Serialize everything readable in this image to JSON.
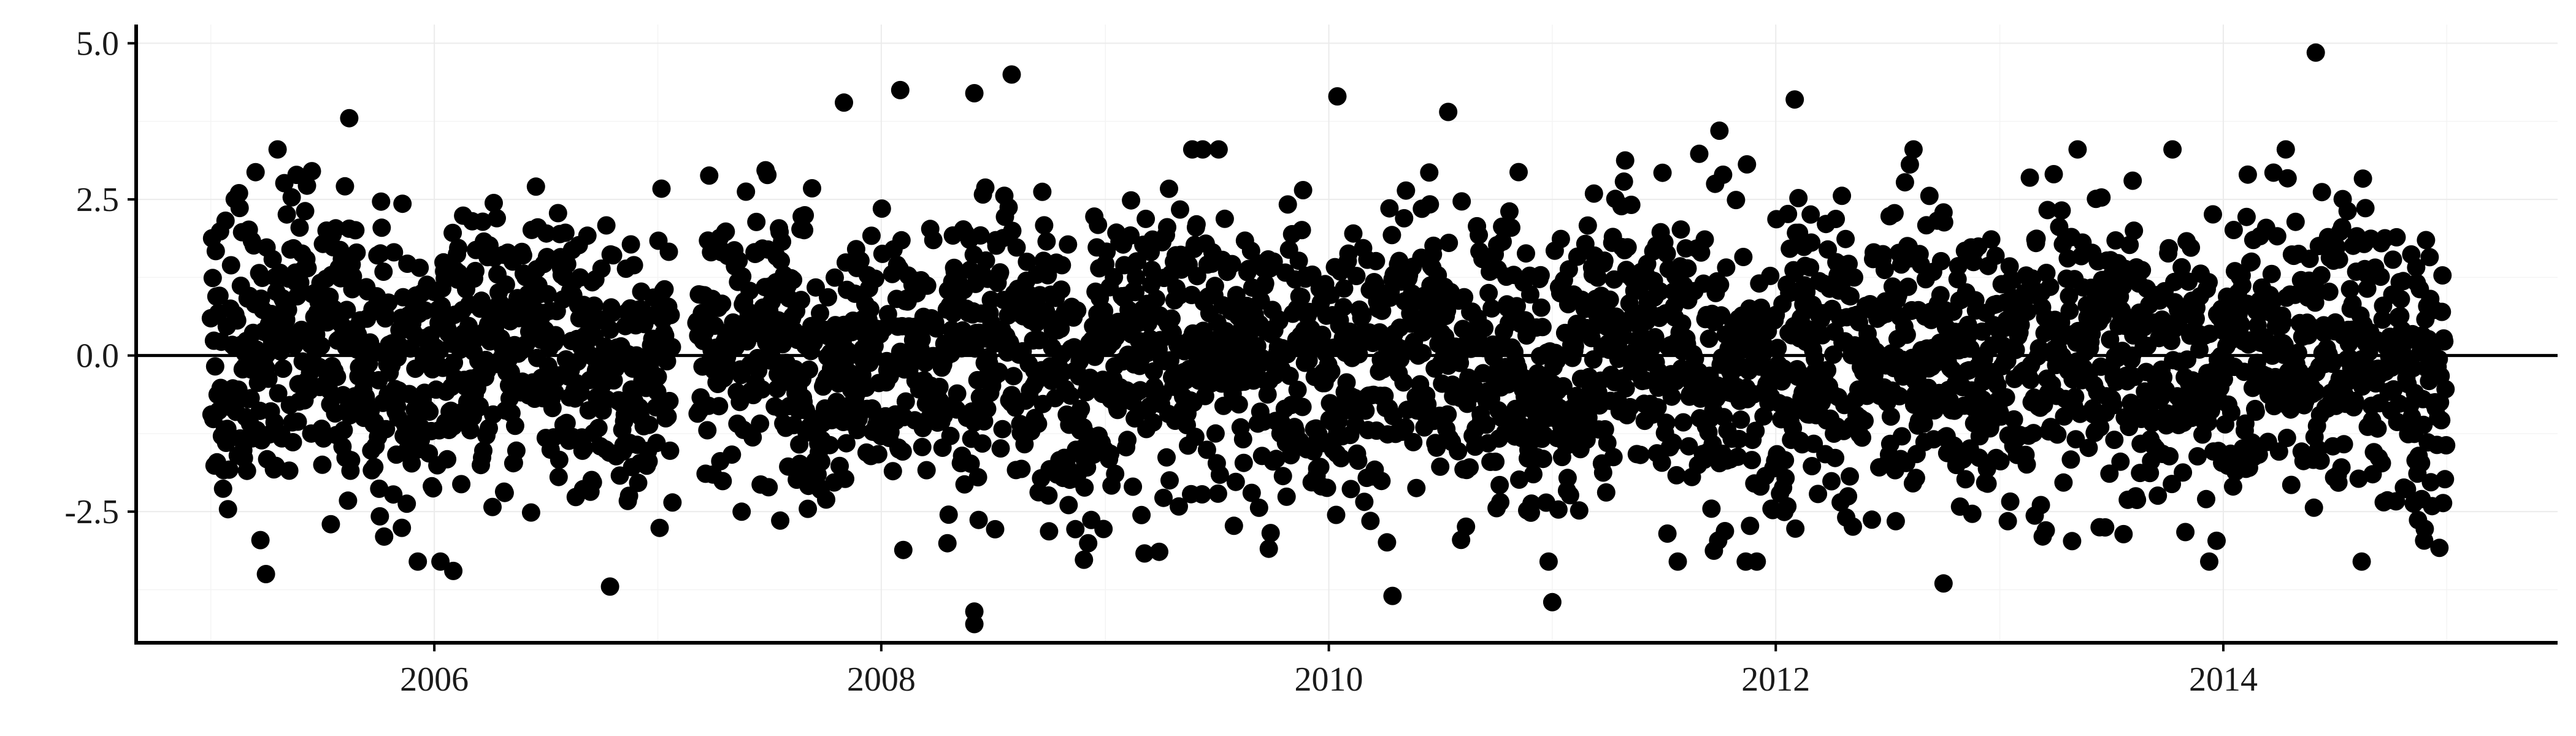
{
  "chart_data": {
    "type": "scatter",
    "title": "",
    "xlabel": "",
    "ylabel": "",
    "x_range": [
      "2004-09-01",
      "2015-07-01"
    ],
    "ylim": [
      -4.6,
      5.3
    ],
    "y_ticks": [
      -2.5,
      0.0,
      2.5,
      5.0
    ],
    "y_tick_labels": [
      "-2.5",
      "0.0",
      "2.5",
      "5.0"
    ],
    "x_ticks": [
      "2006-01-01",
      "2008-01-01",
      "2010-01-01",
      "2012-01-01",
      "2014-01-01"
    ],
    "x_tick_labels": [
      "2006",
      "2008",
      "2010",
      "2012",
      "2014"
    ],
    "reference_line_y": 0.0,
    "grid": true,
    "point_color": "#000000",
    "series": [
      {
        "sampling": "daily",
        "start": "2005-01-01",
        "end": "2014-12-31",
        "notable_points": [
          {
            "x": "2014-06-01",
            "y": 4.85
          },
          {
            "x": "2008-08-01",
            "y": 4.5
          },
          {
            "x": "2008-02-01",
            "y": 4.25
          },
          {
            "x": "2008-06-01",
            "y": 4.2
          },
          {
            "x": "2010-01-15",
            "y": 4.15
          },
          {
            "x": "2012-02-01",
            "y": 4.1
          },
          {
            "x": "2007-11-01",
            "y": 4.05
          },
          {
            "x": "2010-07-15",
            "y": 3.9
          },
          {
            "x": "2005-08-15",
            "y": 3.8
          },
          {
            "x": "2011-10-01",
            "y": 3.6
          },
          {
            "x": "2005-04-01",
            "y": -3.5
          },
          {
            "x": "2006-02-01",
            "y": -3.45
          },
          {
            "x": "2006-10-15",
            "y": -3.7
          },
          {
            "x": "2008-06-01",
            "y": -4.3
          },
          {
            "x": "2008-06-01",
            "y": -4.1
          },
          {
            "x": "2010-04-15",
            "y": -3.85
          },
          {
            "x": "2011-01-01",
            "y": -3.95
          },
          {
            "x": "2012-10-01",
            "y": -3.65
          },
          {
            "x": "2014-08-15",
            "y": -3.3
          }
        ]
      }
    ]
  }
}
